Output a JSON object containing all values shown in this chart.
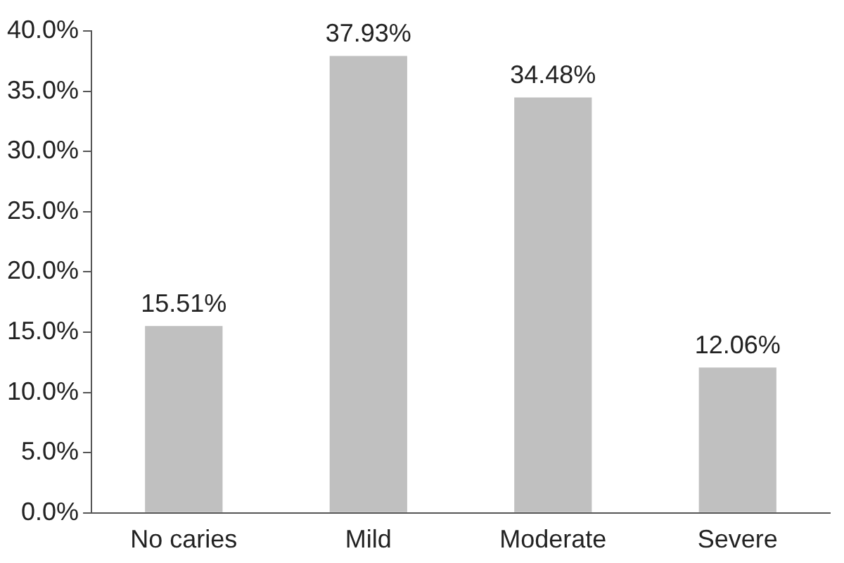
{
  "chart_data": {
    "type": "bar",
    "categories": [
      "No caries",
      "Mild",
      "Moderate",
      "Severe"
    ],
    "values": [
      15.51,
      37.93,
      34.48,
      12.06
    ],
    "color": "#c0c0c0",
    "value_labels": [
      "15.51%",
      "37.93%",
      "34.48%",
      "12.06%"
    ],
    "ylim": [
      0,
      40
    ],
    "yticks": [
      {
        "value": 0,
        "label": "0.0%"
      },
      {
        "value": 5,
        "label": "5.0%"
      },
      {
        "value": 10,
        "label": "10.0%"
      },
      {
        "value": 15,
        "label": "15.0%"
      },
      {
        "value": 20,
        "label": "20.0%"
      },
      {
        "value": 25,
        "label": "25.0%"
      },
      {
        "value": 30,
        "label": "30.0%"
      },
      {
        "value": 35,
        "label": "35.0%"
      },
      {
        "value": 40,
        "label": "40.0%"
      }
    ],
    "grid": false,
    "legend": false
  }
}
